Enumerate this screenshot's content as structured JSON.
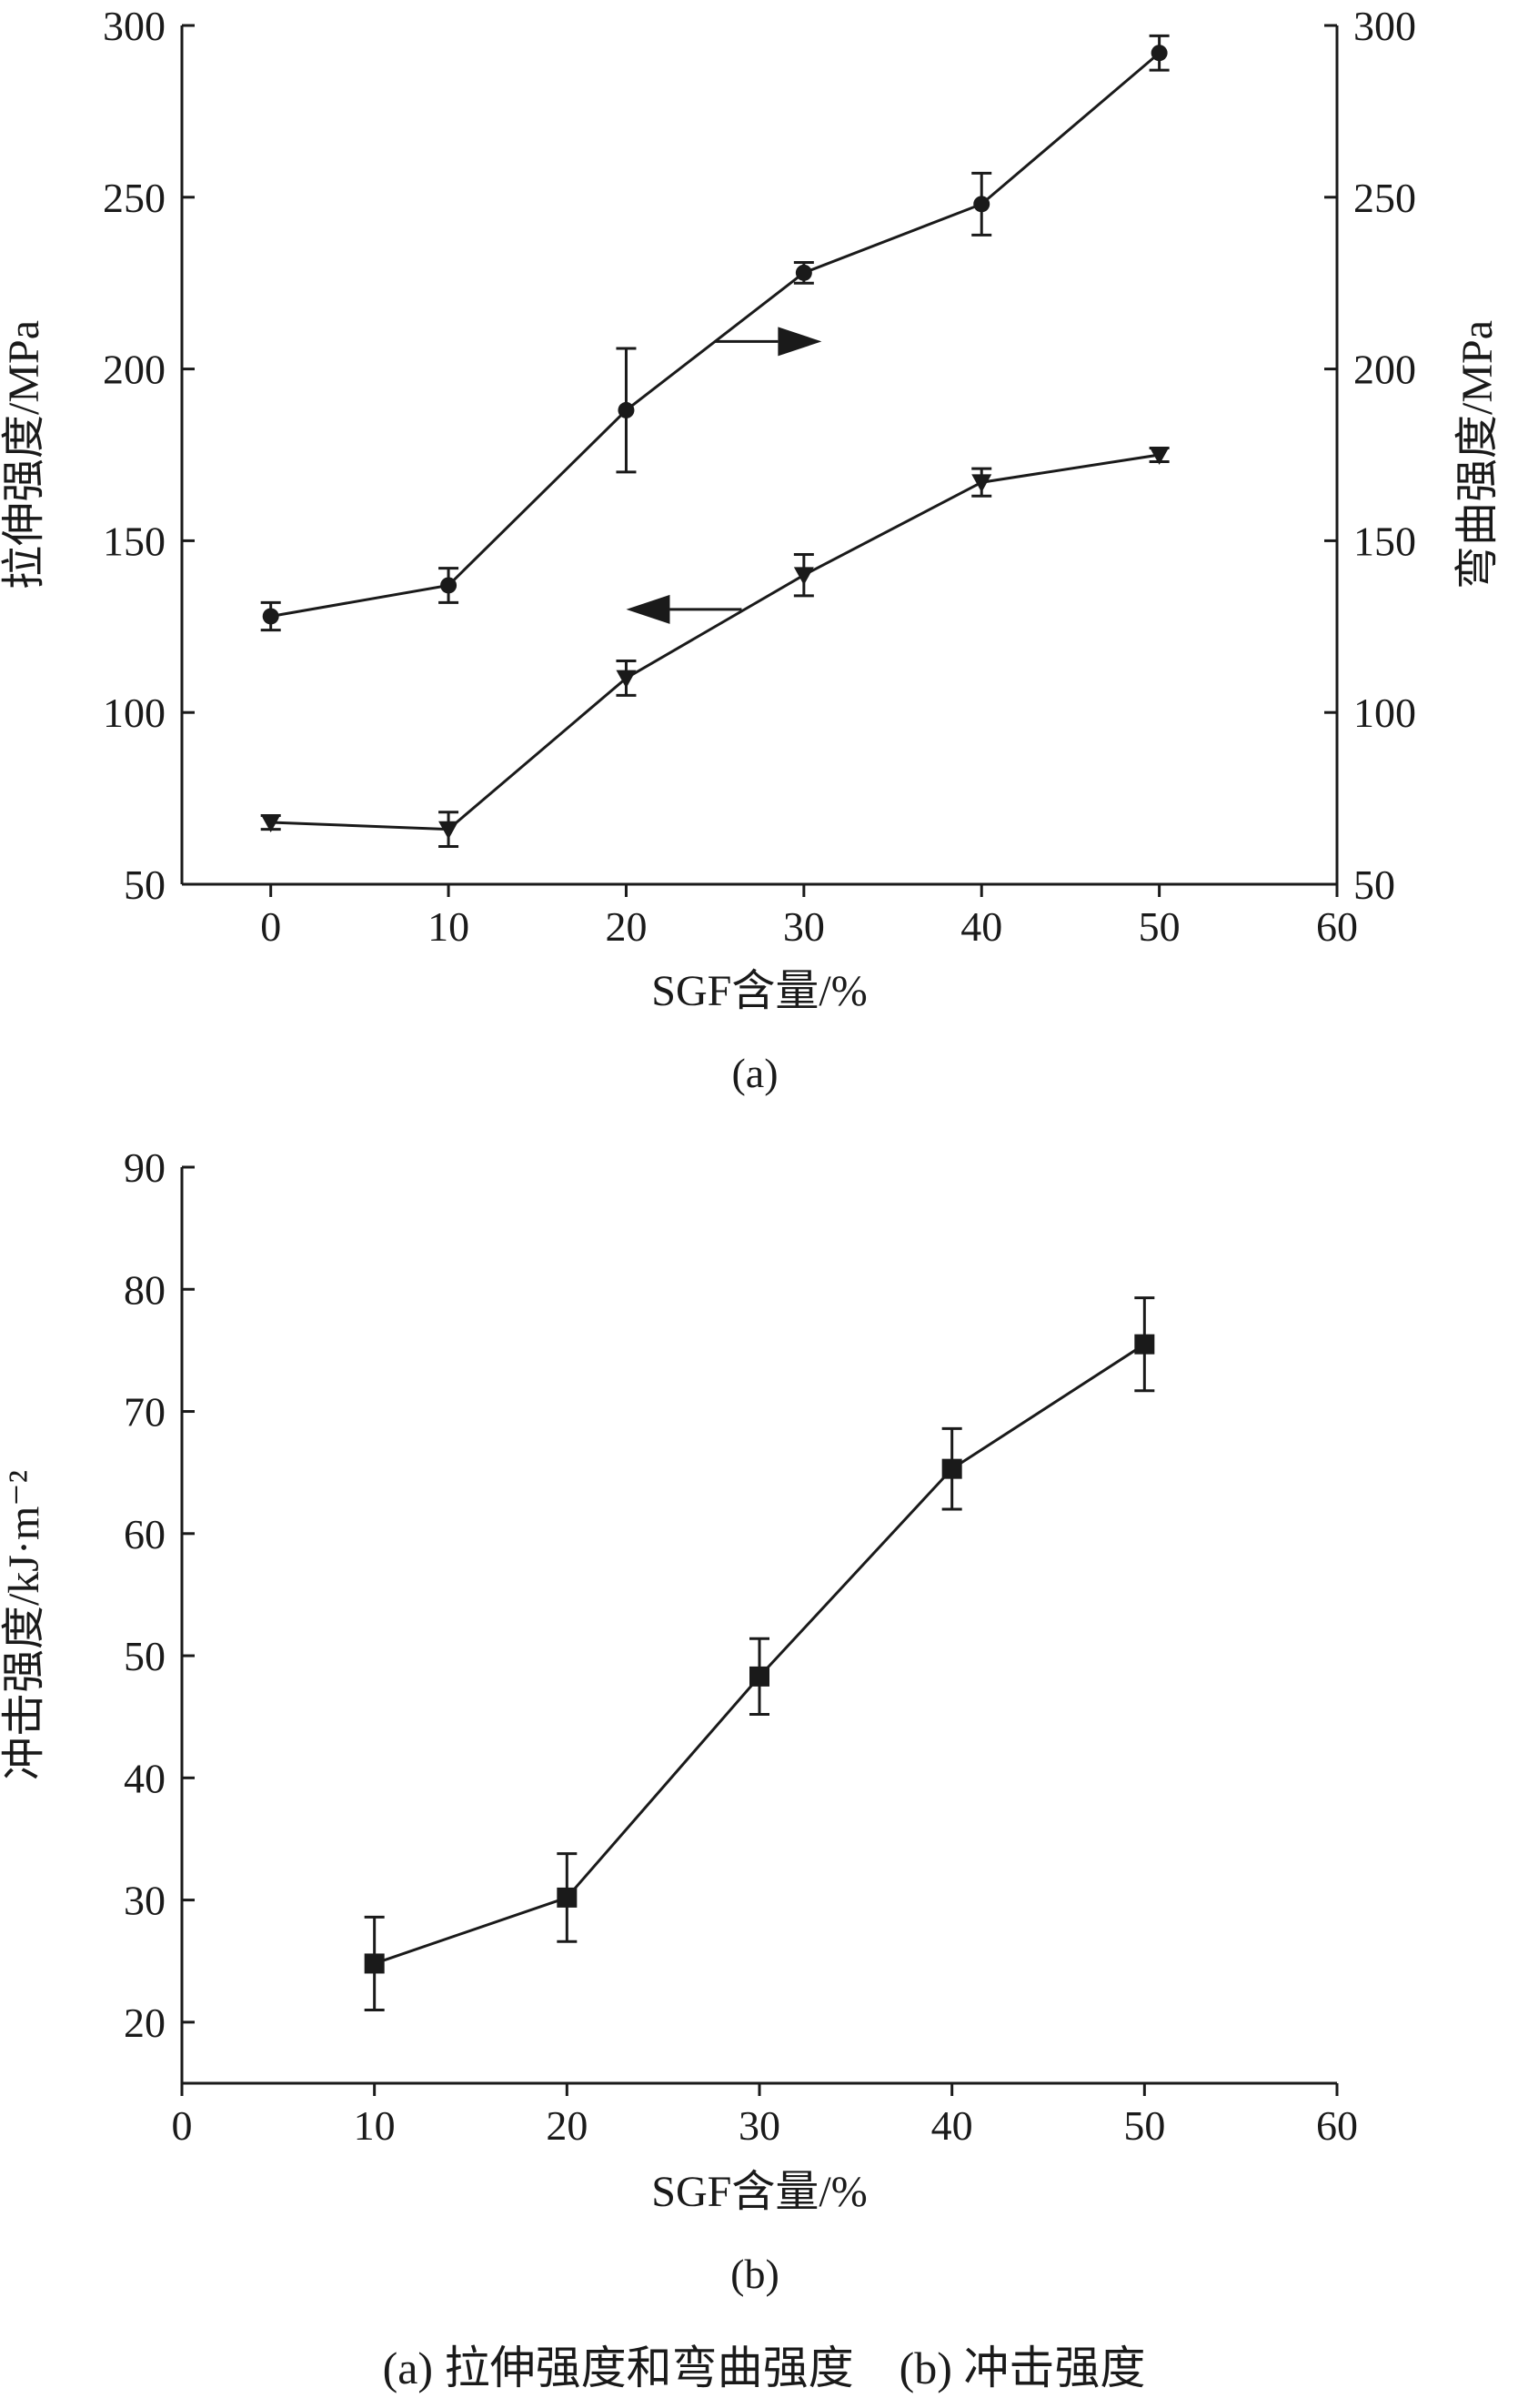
{
  "chart_data": [
    {
      "type": "line",
      "panel_label": "(a)",
      "xlabel": "SGF含量/%",
      "ylabel": "拉伸强度/MPa",
      "y2label": "弯曲强度/MPa",
      "xlim": [
        -5,
        60
      ],
      "ylim": [
        50,
        300
      ],
      "y2lim": [
        50,
        300
      ],
      "xticks": [
        0,
        10,
        20,
        30,
        40,
        50,
        60
      ],
      "yticks": [
        50,
        100,
        150,
        200,
        250,
        300
      ],
      "grid": false,
      "x": [
        0,
        10,
        20,
        30,
        40,
        50
      ],
      "series": [
        {
          "marker": "circle",
          "axis": "right",
          "values": [
            128,
            137,
            188,
            228,
            248,
            292
          ],
          "error": [
            4,
            5,
            18,
            3,
            9,
            5
          ]
        },
        {
          "marker": "triangle-down",
          "axis": "left",
          "values": [
            68,
            66,
            110,
            140,
            167,
            175
          ],
          "error": [
            2,
            5,
            5,
            6,
            4,
            2
          ]
        }
      ],
      "annotations": [
        {
          "type": "arrow",
          "direction": "right",
          "points_to": "right-axis",
          "at": {
            "x": [
              25,
              31
            ],
            "y": 208
          }
        },
        {
          "type": "arrow",
          "direction": "left",
          "points_to": "left-axis",
          "at": {
            "x": [
              26.5,
              20
            ],
            "y": 130
          }
        }
      ]
    },
    {
      "type": "scatter",
      "panel_label": "(b)",
      "xlabel": "SGF含量/%",
      "ylabel": "冲击强度/kJ·m⁻²",
      "xlim": [
        0,
        60
      ],
      "ylim": [
        15,
        90
      ],
      "xticks": [
        0,
        10,
        20,
        30,
        40,
        50,
        60
      ],
      "yticks": [
        20,
        30,
        40,
        50,
        60,
        70,
        80,
        90
      ],
      "grid": false,
      "x": [
        10,
        20,
        30,
        40,
        50
      ],
      "series": [
        {
          "marker": "square",
          "values": [
            24.8,
            30.2,
            48.3,
            65.3,
            75.5
          ],
          "error": [
            3.8,
            3.6,
            3.1,
            3.3,
            3.8
          ]
        }
      ]
    }
  ],
  "caption": "(a) 拉伸强度和弯曲强度　(b) 冲击强度"
}
